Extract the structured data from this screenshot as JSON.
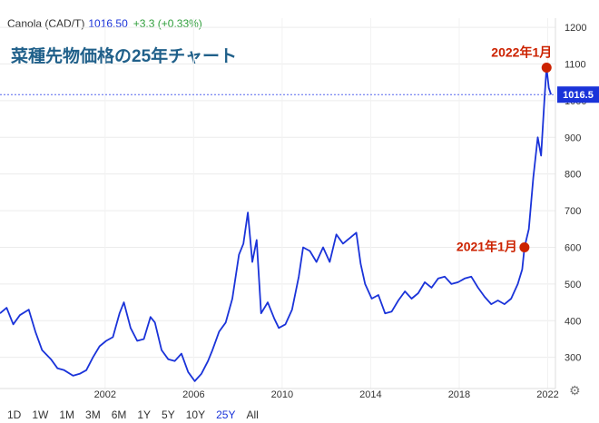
{
  "header": {
    "symbol": "Canola (CAD/T)",
    "price": "1016.50",
    "change": "+3.3 (+0.33%)"
  },
  "title": "菜種先物価格の25年チャート",
  "last_price_label": "1016.5",
  "range_buttons": [
    "1D",
    "1W",
    "1M",
    "3M",
    "6M",
    "1Y",
    "5Y",
    "10Y",
    "25Y",
    "All"
  ],
  "active_range": "25Y",
  "colors": {
    "line": "#1a33d9",
    "annotation": "#cc2200",
    "title": "#20608a",
    "last_price_bg": "#1a33d9"
  },
  "chart_data": {
    "type": "line",
    "title": "菜種先物価格の25年チャート",
    "xlabel": "",
    "ylabel": "",
    "x_tick_labels": [
      "2002",
      "2006",
      "2010",
      "2014",
      "2018",
      "2022"
    ],
    "y_tick_labels": [
      "300",
      "400",
      "500",
      "600",
      "700",
      "800",
      "900",
      "1000",
      "1100",
      "1200"
    ],
    "xlim": [
      1997.3,
      2022.4
    ],
    "ylim": [
      215,
      1225
    ],
    "last_price": 1016.5,
    "series": [
      {
        "values": [
          [
            1997.3,
            420
          ],
          [
            1997.6,
            435
          ],
          [
            1997.9,
            390
          ],
          [
            1998.2,
            415
          ],
          [
            1998.6,
            430
          ],
          [
            1998.9,
            370
          ],
          [
            1999.2,
            320
          ],
          [
            1999.6,
            295
          ],
          [
            1999.9,
            270
          ],
          [
            2000.2,
            265
          ],
          [
            2000.6,
            250
          ],
          [
            2000.9,
            255
          ],
          [
            2001.2,
            265
          ],
          [
            2001.5,
            300
          ],
          [
            2001.8,
            330
          ],
          [
            2002.1,
            345
          ],
          [
            2002.4,
            355
          ],
          [
            2002.7,
            420
          ],
          [
            2002.9,
            450
          ],
          [
            2003.2,
            380
          ],
          [
            2003.5,
            345
          ],
          [
            2003.8,
            350
          ],
          [
            2004.1,
            410
          ],
          [
            2004.3,
            395
          ],
          [
            2004.6,
            320
          ],
          [
            2004.9,
            295
          ],
          [
            2005.2,
            290
          ],
          [
            2005.5,
            310
          ],
          [
            2005.8,
            260
          ],
          [
            2006.1,
            235
          ],
          [
            2006.4,
            255
          ],
          [
            2006.7,
            290
          ],
          [
            2006.9,
            320
          ],
          [
            2007.2,
            370
          ],
          [
            2007.5,
            395
          ],
          [
            2007.8,
            460
          ],
          [
            2008.1,
            580
          ],
          [
            2008.3,
            610
          ],
          [
            2008.5,
            695
          ],
          [
            2008.7,
            560
          ],
          [
            2008.9,
            620
          ],
          [
            2009.1,
            420
          ],
          [
            2009.4,
            450
          ],
          [
            2009.7,
            405
          ],
          [
            2009.9,
            380
          ],
          [
            2010.2,
            390
          ],
          [
            2010.5,
            430
          ],
          [
            2010.8,
            520
          ],
          [
            2011.0,
            600
          ],
          [
            2011.3,
            590
          ],
          [
            2011.6,
            560
          ],
          [
            2011.9,
            600
          ],
          [
            2012.2,
            560
          ],
          [
            2012.5,
            635
          ],
          [
            2012.8,
            610
          ],
          [
            2013.1,
            625
          ],
          [
            2013.4,
            640
          ],
          [
            2013.6,
            555
          ],
          [
            2013.8,
            500
          ],
          [
            2014.1,
            460
          ],
          [
            2014.4,
            470
          ],
          [
            2014.7,
            420
          ],
          [
            2015.0,
            425
          ],
          [
            2015.3,
            455
          ],
          [
            2015.6,
            480
          ],
          [
            2015.9,
            460
          ],
          [
            2016.2,
            475
          ],
          [
            2016.5,
            505
          ],
          [
            2016.8,
            490
          ],
          [
            2017.1,
            515
          ],
          [
            2017.4,
            520
          ],
          [
            2017.7,
            500
          ],
          [
            2018.0,
            505
          ],
          [
            2018.3,
            515
          ],
          [
            2018.6,
            520
          ],
          [
            2018.9,
            490
          ],
          [
            2019.2,
            465
          ],
          [
            2019.5,
            445
          ],
          [
            2019.8,
            455
          ],
          [
            2020.1,
            445
          ],
          [
            2020.4,
            460
          ],
          [
            2020.7,
            500
          ],
          [
            2020.9,
            540
          ],
          [
            2021.0,
            600
          ],
          [
            2021.2,
            650
          ],
          [
            2021.4,
            790
          ],
          [
            2021.6,
            900
          ],
          [
            2021.75,
            850
          ],
          [
            2021.9,
            1000
          ],
          [
            2022.0,
            1090
          ],
          [
            2022.1,
            1035
          ],
          [
            2022.2,
            1016.5
          ]
        ]
      }
    ],
    "annotations": [
      {
        "label": "2022年1月",
        "x": 2022.0,
        "y": 1090
      },
      {
        "label": "2021年1月",
        "x": 2021.0,
        "y": 600
      }
    ]
  }
}
